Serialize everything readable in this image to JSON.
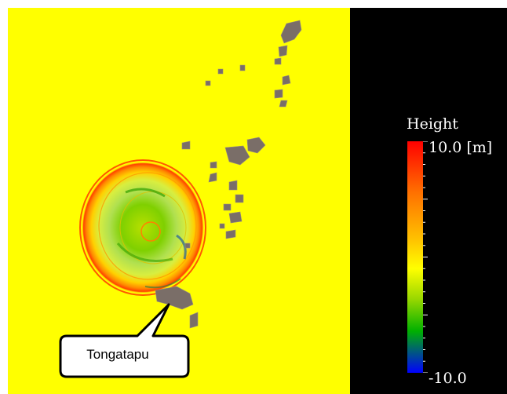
{
  "legend": {
    "title": "Height",
    "max_label": "10.0 [m]",
    "min_label": "-10.0"
  },
  "annotation": {
    "label": "Tongatapu"
  },
  "colors": {
    "sea_background": "#ffff00",
    "land": "#7a6e68",
    "panel_background": "#000000"
  }
}
